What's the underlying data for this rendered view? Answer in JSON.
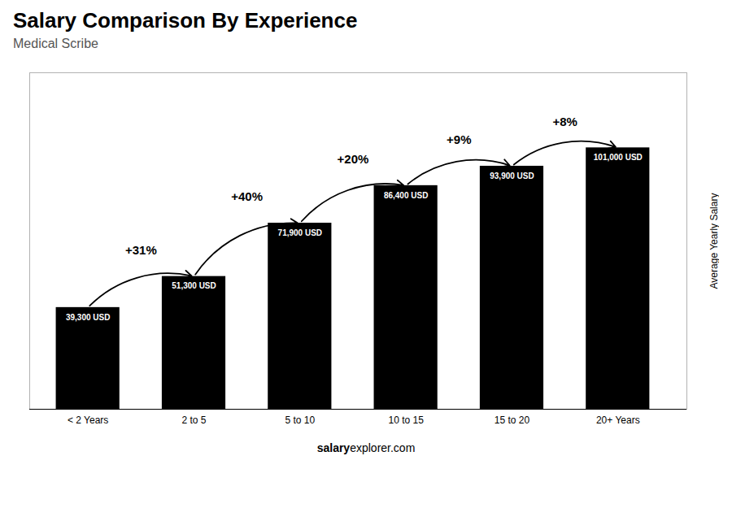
{
  "chart_data": {
    "type": "bar",
    "title": "Salary Comparison By Experience",
    "subtitle": "Medical Scribe",
    "ylabel": "Average Yearly Salary",
    "categories": [
      "< 2 Years",
      "2 to 5",
      "5 to 10",
      "10 to 15",
      "15 to 20",
      "20+ Years"
    ],
    "values": [
      39300,
      51300,
      71900,
      86400,
      93900,
      101000
    ],
    "value_labels": [
      "39,300 USD",
      "51,300 USD",
      "71,900 USD",
      "86,400 USD",
      "93,900 USD",
      "101,000 USD"
    ],
    "data_labels": true,
    "ylim": [
      0,
      130000
    ],
    "yticks": [],
    "tick_labels": "x",
    "grid": false,
    "annotations": [
      {
        "text": "+31%",
        "from": "< 2 Years",
        "to": "2 to 5"
      },
      {
        "text": "+40%",
        "from": "2 to 5",
        "to": "5 to 10"
      },
      {
        "text": "+20%",
        "from": "5 to 10",
        "to": "10 to 15"
      },
      {
        "text": "+9%",
        "from": "10 to 15",
        "to": "15 to 20"
      },
      {
        "text": "+8%",
        "from": "15 to 20",
        "to": "20+ Years"
      },
      {
        "text": "salary"
      },
      {
        "text": "explorer.com"
      }
    ]
  }
}
